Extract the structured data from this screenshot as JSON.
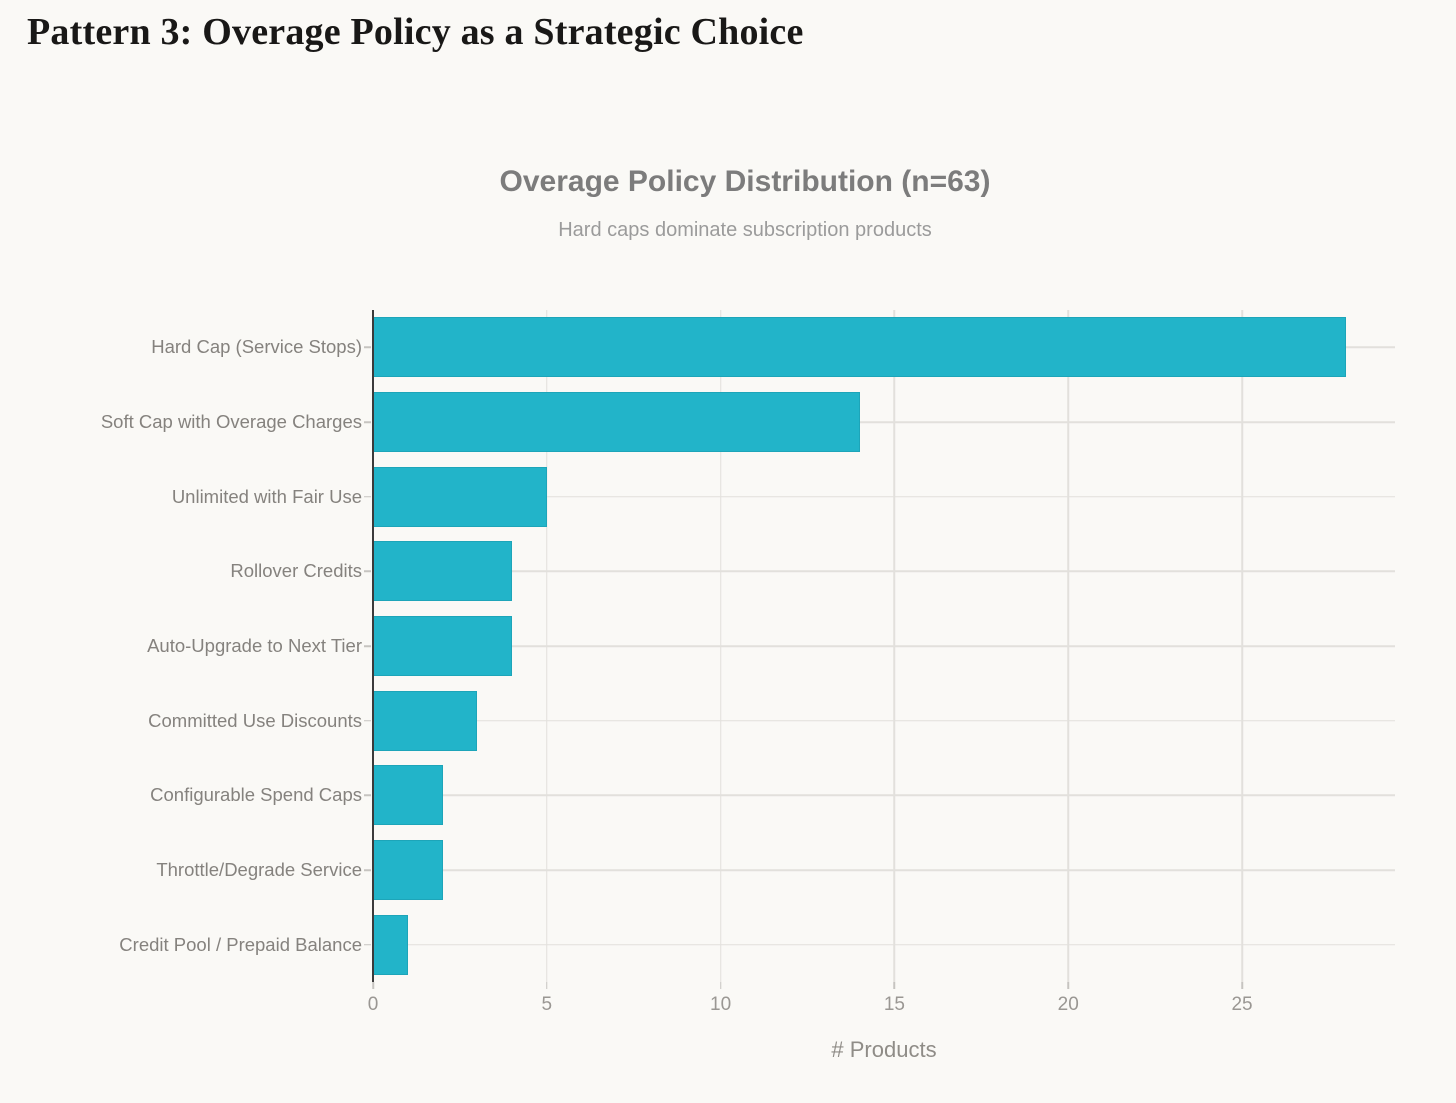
{
  "page": {
    "heading": "Pattern 3: Overage Policy as a Strategic Choice"
  },
  "chart_data": {
    "type": "bar",
    "orientation": "horizontal",
    "title": "Overage Policy Distribution (n=63)",
    "subtitle": "Hard caps dominate subscription products",
    "xlabel": "# Products",
    "categories": [
      "Hard Cap (Service Stops)",
      "Soft Cap with Overage Charges",
      "Unlimited with Fair Use",
      "Rollover Credits",
      "Auto-Upgrade to Next Tier",
      "Committed Use Discounts",
      "Configurable Spend Caps",
      "Throttle/Degrade Service",
      "Credit Pool / Prepaid Balance"
    ],
    "values": [
      28,
      14,
      5,
      4,
      4,
      3,
      2,
      2,
      1
    ],
    "total_n": 63,
    "x_ticks": [
      0,
      5,
      10,
      15,
      20,
      25
    ],
    "xlim": [
      0,
      29.4
    ],
    "grid": true,
    "legend_position": "none",
    "colors": {
      "bar": "#22b4c9",
      "gridline": "#e2e0dc",
      "axis_line": "#3b3b3b",
      "tick_mark": "#c6c4c0",
      "background": "#faf9f6"
    }
  }
}
